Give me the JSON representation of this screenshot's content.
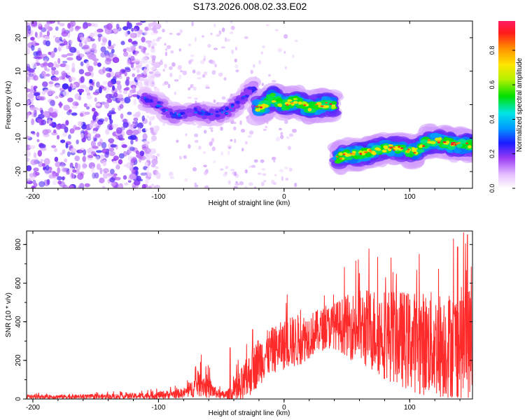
{
  "title": "S173.2026.008.02.33.E02",
  "colors": {
    "snr_line": "#ff2a2a",
    "axis": "#000000",
    "background": "#ffffff"
  },
  "chart_data": [
    {
      "type": "heatmap",
      "name": "spectrogram",
      "xlabel": "Height of straight line (km)",
      "ylabel": "Frequency (Hz)",
      "xlim": [
        -205,
        150
      ],
      "ylim": [
        -25,
        25
      ],
      "x_ticks": [
        -200,
        -100,
        0,
        100
      ],
      "x_tick_labels": [
        "-200",
        "-100",
        "0",
        "100"
      ],
      "y_ticks": [
        -20,
        -10,
        0,
        10,
        20
      ],
      "y_tick_labels": [
        "-20",
        "-10",
        "0",
        "10",
        "20"
      ],
      "colorbar": {
        "label": "Normalized spectral amplitude",
        "range": [
          0,
          0.97
        ],
        "ticks": [
          0,
          0.2,
          0.4,
          0.6,
          0.8
        ],
        "tick_labels": [
          "0.0",
          "0.2",
          "0.4",
          "0.6",
          "0.8"
        ]
      },
      "noise_region": {
        "x_range": [
          -205,
          -110
        ],
        "y_range": [
          -25,
          25
        ],
        "amplitude": [
          0.05,
          0.25
        ]
      },
      "ridge_segments": [
        {
          "points": [
            [
              -112,
              2
            ],
            [
              -100,
              0
            ],
            [
              -90,
              -3
            ],
            [
              -80,
              -3
            ],
            [
              -70,
              -2
            ],
            [
              -60,
              -3
            ],
            [
              -55,
              -3
            ],
            [
              -45,
              -2
            ],
            [
              -35,
              1
            ],
            [
              -30,
              3
            ],
            [
              -25,
              5
            ],
            [
              -23,
              4
            ]
          ],
          "peak_amplitude": 0.35
        },
        {
          "points": [
            [
              -22,
              -1
            ],
            [
              -15,
              0
            ],
            [
              -10,
              2
            ],
            [
              -5,
              1
            ],
            [
              0,
              0
            ],
            [
              10,
              1
            ],
            [
              20,
              -1
            ],
            [
              30,
              0
            ],
            [
              40,
              0
            ]
          ],
          "peak_amplitude": 0.95
        },
        {
          "points": [
            [
              42,
              -16
            ],
            [
              50,
              -15
            ],
            [
              60,
              -15
            ],
            [
              70,
              -14
            ],
            [
              80,
              -13
            ],
            [
              90,
              -13
            ],
            [
              100,
              -14
            ],
            [
              105,
              -14
            ],
            [
              110,
              -12
            ],
            [
              115,
              -11
            ],
            [
              125,
              -11
            ],
            [
              135,
              -12
            ],
            [
              145,
              -12
            ],
            [
              150,
              -12
            ]
          ],
          "peak_amplitude": 0.95
        }
      ]
    },
    {
      "type": "line",
      "name": "snr",
      "xlabel": "Height of straight line (km)",
      "ylabel": "SNR (10 * v/v)",
      "xlim": [
        -205,
        150
      ],
      "ylim": [
        0,
        870
      ],
      "x_ticks": [
        -200,
        -100,
        0,
        100
      ],
      "x_tick_labels": [
        "-200",
        "-100",
        "0",
        "100"
      ],
      "y_ticks": [
        0,
        200,
        400,
        600,
        800
      ],
      "y_tick_labels": [
        "0",
        "200",
        "400",
        "600",
        "800"
      ],
      "envelope_x": [
        -205,
        -150,
        -120,
        -100,
        -80,
        -75,
        -70,
        -65,
        -60,
        -55,
        -50,
        -45,
        -40,
        -35,
        -30,
        -25,
        -20,
        -10,
        0,
        10,
        20,
        30,
        40,
        50,
        60,
        70,
        80,
        90,
        100,
        110,
        120,
        130,
        140,
        150
      ],
      "envelope_baseline": [
        12,
        12,
        15,
        20,
        30,
        45,
        70,
        80,
        60,
        35,
        20,
        20,
        25,
        50,
        100,
        150,
        200,
        250,
        280,
        300,
        330,
        360,
        380,
        380,
        370,
        360,
        340,
        320,
        300,
        290,
        280,
        280,
        290,
        300
      ],
      "envelope_spread": [
        10,
        12,
        15,
        20,
        25,
        40,
        60,
        70,
        60,
        30,
        20,
        30,
        50,
        100,
        110,
        120,
        130,
        120,
        130,
        140,
        120,
        110,
        120,
        160,
        200,
        220,
        240,
        250,
        260,
        270,
        280,
        280,
        290,
        300
      ],
      "notable_peaks": [
        {
          "x": -66,
          "y": 230
        },
        {
          "x": -43,
          "y": 265
        },
        {
          "x": -25,
          "y": 360
        },
        {
          "x": 5,
          "y": 420
        },
        {
          "x": 60,
          "y": 650
        },
        {
          "x": 138,
          "y": 790
        },
        {
          "x": 146,
          "y": 850
        }
      ]
    }
  ]
}
